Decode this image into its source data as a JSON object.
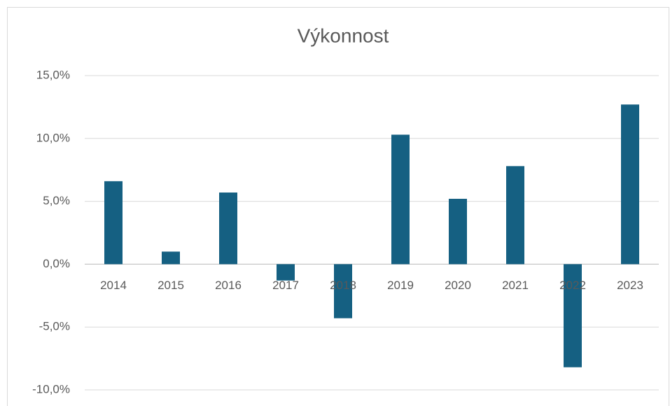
{
  "chart_data": {
    "type": "bar",
    "title": "Výkonnost",
    "categories": [
      "2014",
      "2015",
      "2016",
      "2017",
      "2018",
      "2019",
      "2020",
      "2021",
      "2022",
      "2023"
    ],
    "values": [
      6.6,
      1.0,
      5.7,
      -1.3,
      -4.3,
      10.3,
      5.2,
      7.8,
      -8.2,
      12.7
    ],
    "color": "#156082",
    "ylim": [
      -10,
      15
    ],
    "yticks": [
      {
        "value": -10,
        "label": "-10,0%"
      },
      {
        "value": -5,
        "label": "-5,0%"
      },
      {
        "value": 0,
        "label": "0,0%"
      },
      {
        "value": 5,
        "label": "5,0%"
      },
      {
        "value": 10,
        "label": "10,0%"
      },
      {
        "value": 15,
        "label": "15,0%"
      }
    ],
    "grid": true
  }
}
